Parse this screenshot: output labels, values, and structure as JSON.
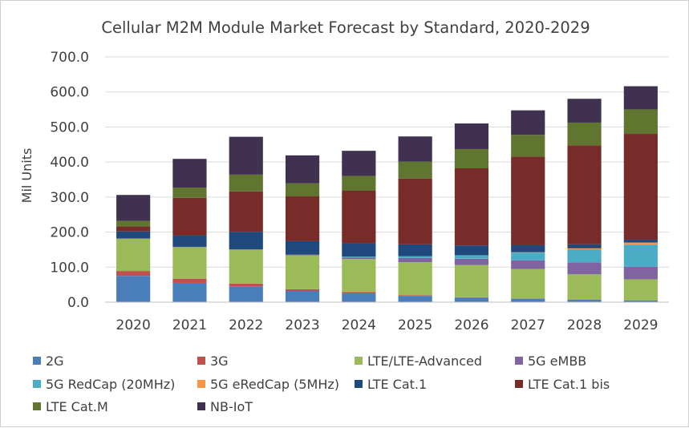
{
  "chart_data": {
    "type": "bar",
    "stacked": true,
    "title": "Cellular M2M Module Market Forecast by Standard, 2020-2029",
    "ylabel": "Mil Units",
    "xlabel": "",
    "ylim": [
      0,
      700
    ],
    "yticks": [
      "0.0",
      "100.0",
      "200.0",
      "300.0",
      "400.0",
      "500.0",
      "600.0",
      "700.0"
    ],
    "grid": true,
    "legend_position": "bottom",
    "categories": [
      "2020",
      "2021",
      "2022",
      "2023",
      "2024",
      "2025",
      "2026",
      "2027",
      "2028",
      "2029"
    ],
    "series": [
      {
        "name": "2G",
        "color": "#4a7ebb",
        "values": [
          75,
          55,
          45,
          32,
          25,
          18,
          13,
          10,
          7,
          5
        ]
      },
      {
        "name": "3G",
        "color": "#c0504d",
        "values": [
          14,
          12,
          8,
          5,
          4,
          2,
          1,
          0.5,
          0.5,
          0.3
        ]
      },
      {
        "name": "LTE/LTE-Advanced",
        "color": "#9bbb59",
        "values": [
          92,
          90,
          97,
          97,
          94,
          94,
          92,
          84,
          72,
          60
        ]
      },
      {
        "name": "5G eMBB",
        "color": "#8064a2",
        "values": [
          1,
          1,
          1,
          2,
          4,
          12,
          18,
          25,
          34,
          36
        ]
      },
      {
        "name": "5G RedCap (20MHz)",
        "color": "#4bacc6",
        "values": [
          0,
          0,
          0,
          0,
          3,
          5,
          10,
          22,
          38,
          63
        ]
      },
      {
        "name": "5G eRedCap (5MHz)",
        "color": "#f79646",
        "values": [
          0,
          0,
          0,
          0,
          0,
          0,
          0,
          1,
          2,
          6
        ]
      },
      {
        "name": "LTE Cat.1",
        "color": "#1f497d",
        "values": [
          20,
          32,
          50,
          38,
          38,
          34,
          28,
          20,
          12,
          8
        ]
      },
      {
        "name": "LTE Cat.1 bis",
        "color": "#772c2a",
        "values": [
          14,
          108,
          115,
          128,
          150,
          188,
          220,
          253,
          282,
          302
        ]
      },
      {
        "name": "LTE Cat.M",
        "color": "#5f7530",
        "values": [
          16,
          29,
          48,
          37,
          42,
          48,
          55,
          62,
          65,
          70
        ]
      },
      {
        "name": "NB-IoT",
        "color": "#403151",
        "values": [
          74,
          82,
          108,
          80,
          72,
          72,
          73,
          70,
          68,
          66
        ]
      }
    ]
  }
}
